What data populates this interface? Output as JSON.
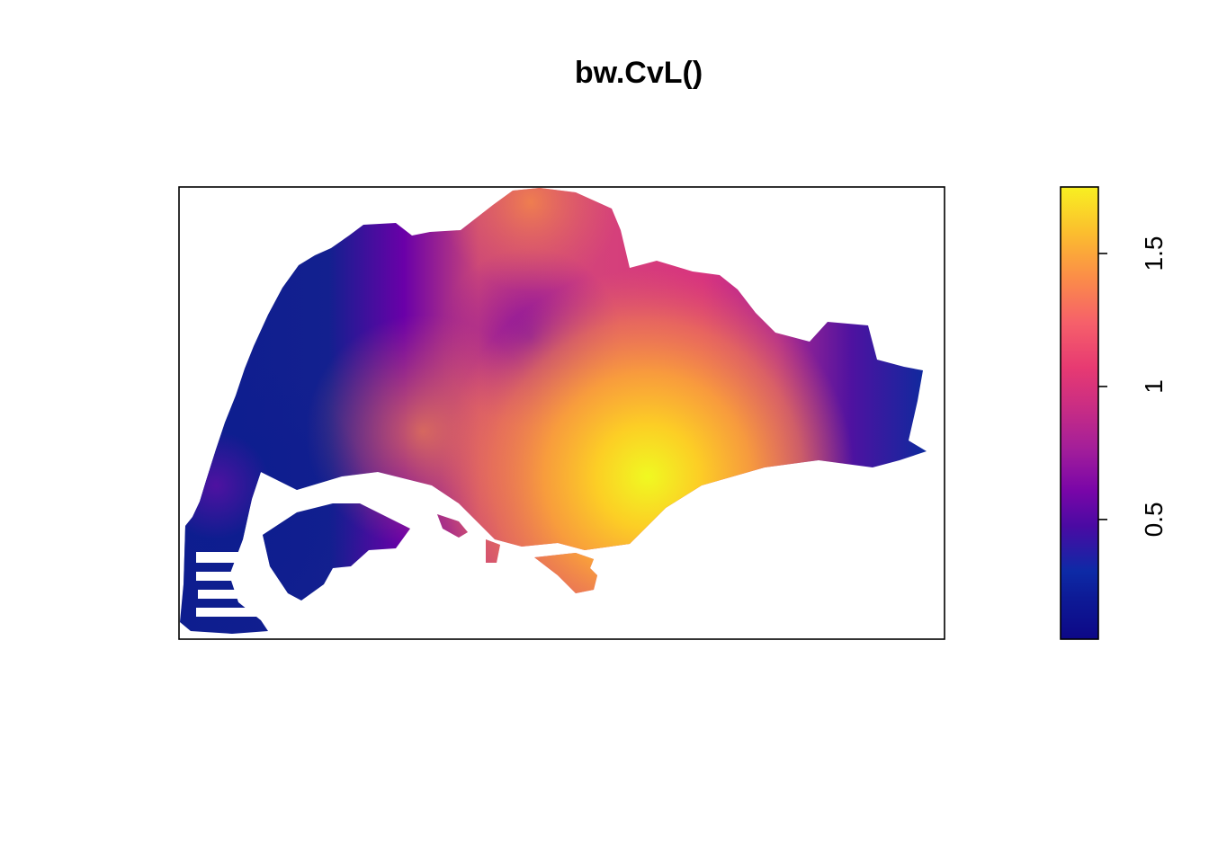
{
  "chart_data": {
    "type": "heatmap",
    "title": "bw.CvL()",
    "xlabel": "",
    "ylabel": "",
    "description_of_values": "Kernel intensity surface over an island-shaped window (Singapore). Values low (dark blue) at west and east ends, peak (yellow) south-central.",
    "zlim": [
      0.05,
      1.75
    ],
    "colorbar": {
      "ticks": [
        0.5,
        1,
        1.5
      ],
      "tick_labels": [
        "0.5",
        "1",
        "1.5"
      ],
      "palette": [
        "#0d0887",
        "#0d2a9e",
        "#3a06a0",
        "#6a00a8",
        "#8f0da4",
        "#b12a90",
        "#cc4778",
        "#e16462",
        "#f2844b",
        "#fca636",
        "#fcce25",
        "#f0f921"
      ]
    },
    "hotspots": [
      {
        "location": "south-central",
        "value": 1.75
      },
      {
        "location": "north-central",
        "value": 1.0
      },
      {
        "location": "west",
        "value": 0.1
      },
      {
        "location": "east",
        "value": 0.15
      }
    ],
    "grid": false
  }
}
